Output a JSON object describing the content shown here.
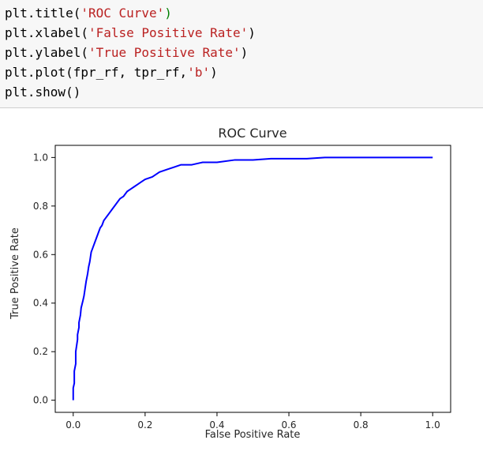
{
  "code_cell": {
    "lines": [
      [
        {
          "t": "plt.title(",
          "c": ""
        },
        {
          "t": "'ROC Curve'",
          "c": "str"
        },
        {
          "t": ")",
          "c": "kw"
        }
      ],
      [
        {
          "t": "plt.xlabel(",
          "c": ""
        },
        {
          "t": "'False Positive Rate'",
          "c": "str"
        },
        {
          "t": ")",
          "c": ""
        }
      ],
      [
        {
          "t": "plt.ylabel(",
          "c": ""
        },
        {
          "t": "'True Positive Rate'",
          "c": "str"
        },
        {
          "t": ")",
          "c": ""
        }
      ],
      [
        {
          "t": "plt.plot(fpr_rf, tpr_rf,",
          "c": ""
        },
        {
          "t": "'b'",
          "c": "str"
        },
        {
          "t": ")",
          "c": ""
        }
      ],
      [
        {
          "t": "plt.show()",
          "c": ""
        }
      ]
    ]
  },
  "chart_data": {
    "type": "line",
    "title": "ROC Curve",
    "xlabel": "False Positive Rate",
    "ylabel": "True Positive Rate",
    "xlim": [
      -0.05,
      1.05
    ],
    "ylim": [
      -0.05,
      1.05
    ],
    "xticks": [
      0.0,
      0.2,
      0.4,
      0.6,
      0.8,
      1.0
    ],
    "xtick_labels": [
      "0.0",
      "0.2",
      "0.4",
      "0.6",
      "0.8",
      "1.0"
    ],
    "yticks": [
      0.0,
      0.2,
      0.4,
      0.6,
      0.8,
      1.0
    ],
    "ytick_labels": [
      "0.0",
      "0.2",
      "0.4",
      "0.6",
      "0.8",
      "1.0"
    ],
    "grid": false,
    "series": [
      {
        "color": "#0000ff",
        "x": [
          0.0,
          0.0,
          0.003,
          0.003,
          0.007,
          0.007,
          0.012,
          0.012,
          0.016,
          0.016,
          0.02,
          0.022,
          0.027,
          0.03,
          0.033,
          0.036,
          0.04,
          0.043,
          0.046,
          0.048,
          0.05,
          0.055,
          0.06,
          0.065,
          0.07,
          0.075,
          0.08,
          0.085,
          0.09,
          0.095,
          0.1,
          0.11,
          0.12,
          0.13,
          0.14,
          0.15,
          0.16,
          0.17,
          0.18,
          0.19,
          0.2,
          0.22,
          0.24,
          0.26,
          0.28,
          0.3,
          0.33,
          0.36,
          0.4,
          0.45,
          0.5,
          0.55,
          0.6,
          0.65,
          0.7,
          0.75,
          0.8,
          0.85,
          0.9,
          0.93,
          0.95,
          1.0
        ],
        "y": [
          0.0,
          0.05,
          0.07,
          0.12,
          0.15,
          0.2,
          0.25,
          0.27,
          0.3,
          0.32,
          0.35,
          0.38,
          0.41,
          0.43,
          0.46,
          0.49,
          0.52,
          0.55,
          0.57,
          0.59,
          0.61,
          0.63,
          0.65,
          0.67,
          0.69,
          0.71,
          0.72,
          0.74,
          0.75,
          0.76,
          0.77,
          0.79,
          0.81,
          0.83,
          0.84,
          0.86,
          0.87,
          0.88,
          0.89,
          0.9,
          0.91,
          0.92,
          0.94,
          0.95,
          0.96,
          0.97,
          0.97,
          0.98,
          0.98,
          0.99,
          0.99,
          0.995,
          0.995,
          0.995,
          1.0,
          1.0,
          1.0,
          1.0,
          1.0,
          1.0,
          1.0,
          1.0
        ]
      }
    ]
  }
}
